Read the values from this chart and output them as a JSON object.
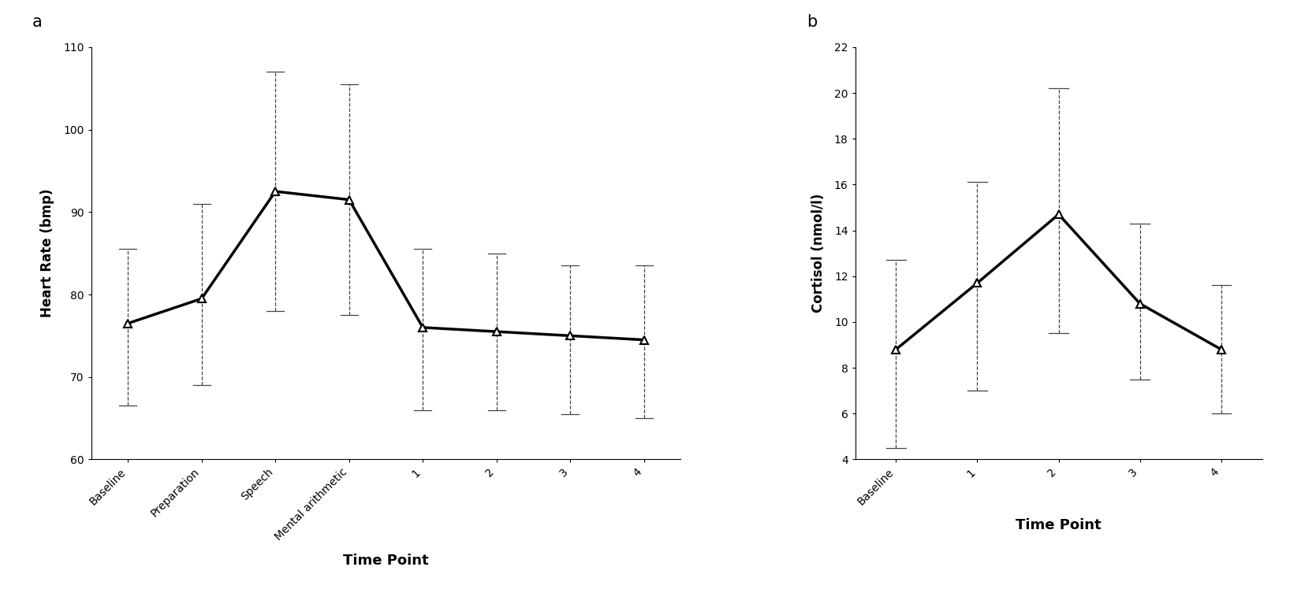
{
  "panel_a": {
    "label": "a",
    "x_labels": [
      "Baseline",
      "Preparation",
      "Speech",
      "Mental arithmetic",
      "1",
      "2",
      "3",
      "4"
    ],
    "y_values": [
      76.5,
      79.5,
      92.5,
      91.5,
      76.0,
      75.5,
      75.0,
      74.5
    ],
    "y_err_upper": [
      9.0,
      11.5,
      14.5,
      14.0,
      9.5,
      9.5,
      8.5,
      9.0
    ],
    "y_err_lower": [
      10.0,
      10.5,
      14.5,
      14.0,
      10.0,
      9.5,
      9.5,
      9.5
    ],
    "ylabel": "Heart Rate (bmp)",
    "xlabel": "Time Point",
    "ylim": [
      60,
      110
    ],
    "yticks": [
      60,
      70,
      80,
      90,
      100,
      110
    ]
  },
  "panel_b": {
    "label": "b",
    "x_labels": [
      "Baseline",
      "1",
      "2",
      "3",
      "4"
    ],
    "y_values": [
      8.8,
      11.7,
      14.7,
      10.8,
      8.8
    ],
    "y_err_upper": [
      3.9,
      4.4,
      5.5,
      3.5,
      2.8
    ],
    "y_err_lower": [
      4.3,
      4.7,
      5.2,
      3.3,
      2.8
    ],
    "ylabel": "Cortisol (nmol/l)",
    "xlabel": "Time Point",
    "ylim": [
      4,
      22
    ],
    "yticks": [
      4,
      6,
      8,
      10,
      12,
      14,
      16,
      18,
      20,
      22
    ]
  },
  "line_color": "#000000",
  "line_width": 2.5,
  "marker": "^",
  "marker_size": 7,
  "marker_facecolor": "white",
  "marker_edgecolor": "#000000",
  "marker_edgewidth": 1.5,
  "error_linewidth": 0.9,
  "error_linestyle": "--",
  "xlabel_fontsize": 13,
  "ylabel_fontsize": 12,
  "tick_fontsize": 10,
  "panel_label_fontsize": 15,
  "background_color": "#ffffff"
}
